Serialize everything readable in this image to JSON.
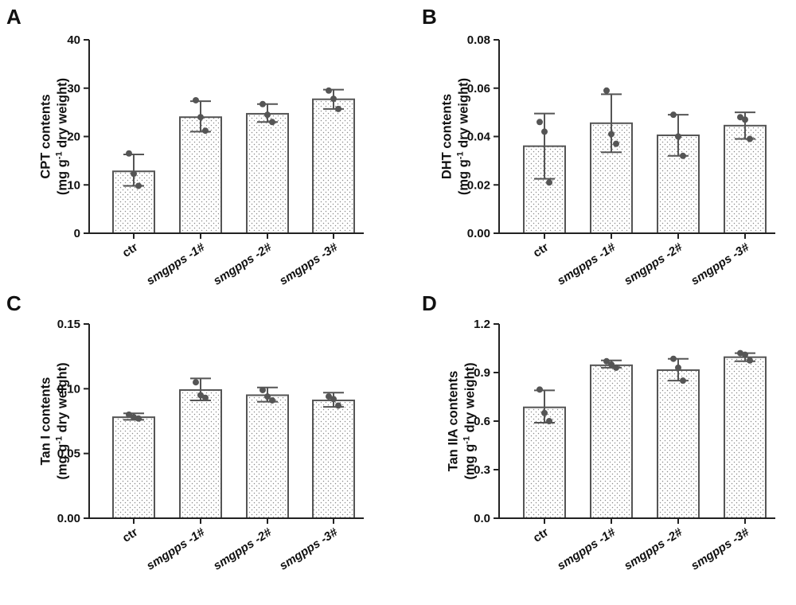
{
  "chart_data": [
    {
      "panel": "A",
      "type": "bar",
      "categories": [
        "ctr",
        "smgpps -1#",
        "smgpps -2#",
        "smgpps -3#"
      ],
      "values": [
        12.8,
        24.0,
        24.7,
        27.7
      ],
      "error": [
        [
          9.8,
          16.3
        ],
        [
          21.0,
          27.3
        ],
        [
          23.0,
          26.7
        ],
        [
          25.7,
          29.7
        ]
      ],
      "points": [
        [
          16.5,
          12.3,
          9.8
        ],
        [
          27.5,
          24.0,
          21.2
        ],
        [
          26.7,
          24.5,
          23.0
        ],
        [
          29.5,
          27.8,
          25.7
        ]
      ],
      "ylabel_line1": "CPT contents",
      "ylabel_line2": "(mg g-1 dry weight)",
      "ylim": [
        0,
        40
      ],
      "yticks": [
        0,
        10,
        20,
        30,
        40
      ],
      "ytick_labels": [
        "0",
        "10",
        "20",
        "30",
        "40"
      ]
    },
    {
      "panel": "B",
      "type": "bar",
      "categories": [
        "ctr",
        "smgpps -1#",
        "smgpps -2#",
        "smgpps -3#"
      ],
      "values": [
        0.036,
        0.0455,
        0.0405,
        0.0445
      ],
      "error": [
        [
          0.0225,
          0.0495
        ],
        [
          0.0335,
          0.0575
        ],
        [
          0.032,
          0.049
        ],
        [
          0.039,
          0.05
        ]
      ],
      "points": [
        [
          0.046,
          0.042,
          0.021
        ],
        [
          0.059,
          0.041,
          0.037
        ],
        [
          0.049,
          0.04,
          0.032
        ],
        [
          0.048,
          0.047,
          0.039
        ]
      ],
      "ylabel_line1": "DHT contents",
      "ylabel_line2": "(mg g-1 dry weight)",
      "ylim": [
        0,
        0.08
      ],
      "yticks": [
        0,
        0.02,
        0.04,
        0.06,
        0.08
      ],
      "ytick_labels": [
        "0.00",
        "0.02",
        "0.04",
        "0.06",
        "0.08"
      ]
    },
    {
      "panel": "C",
      "type": "bar",
      "categories": [
        "ctr",
        "smgpps -1#",
        "smgpps -2#",
        "smgpps -3#"
      ],
      "values": [
        0.078,
        0.099,
        0.095,
        0.091
      ],
      "error": [
        [
          0.076,
          0.081
        ],
        [
          0.091,
          0.108
        ],
        [
          0.09,
          0.101
        ],
        [
          0.086,
          0.097
        ]
      ],
      "points": [
        [
          0.08,
          0.078,
          0.077
        ],
        [
          0.105,
          0.095,
          0.093
        ],
        [
          0.099,
          0.094,
          0.091
        ],
        [
          0.094,
          0.092,
          0.087
        ]
      ],
      "ylabel_line1": "Tan I contents",
      "ylabel_line2": "(mg g-1 dry weight)",
      "ylim": [
        0,
        0.15
      ],
      "yticks": [
        0,
        0.05,
        0.1,
        0.15
      ],
      "ytick_labels": [
        "0.00",
        "0.05",
        "0.10",
        "0.15"
      ]
    },
    {
      "panel": "D",
      "type": "bar",
      "categories": [
        "ctr",
        "smgpps -1#",
        "smgpps -2#",
        "smgpps -3#"
      ],
      "values": [
        0.685,
        0.945,
        0.915,
        0.995
      ],
      "error": [
        [
          0.59,
          0.79
        ],
        [
          0.93,
          0.975
        ],
        [
          0.85,
          0.985
        ],
        [
          0.97,
          1.02
        ]
      ],
      "points": [
        [
          0.795,
          0.65,
          0.6
        ],
        [
          0.97,
          0.95,
          0.93
        ],
        [
          0.985,
          0.93,
          0.85
        ],
        [
          1.02,
          1.01,
          0.975
        ]
      ],
      "ylabel_line1": "Tan IIA contents",
      "ylabel_line2": "(mg g-1 dry weight)",
      "ylim": [
        0,
        1.2
      ],
      "yticks": [
        0,
        0.3,
        0.6,
        0.9,
        1.2
      ],
      "ytick_labels": [
        "0.0",
        "0.3",
        "0.6",
        "0.9",
        "1.2"
      ]
    }
  ]
}
